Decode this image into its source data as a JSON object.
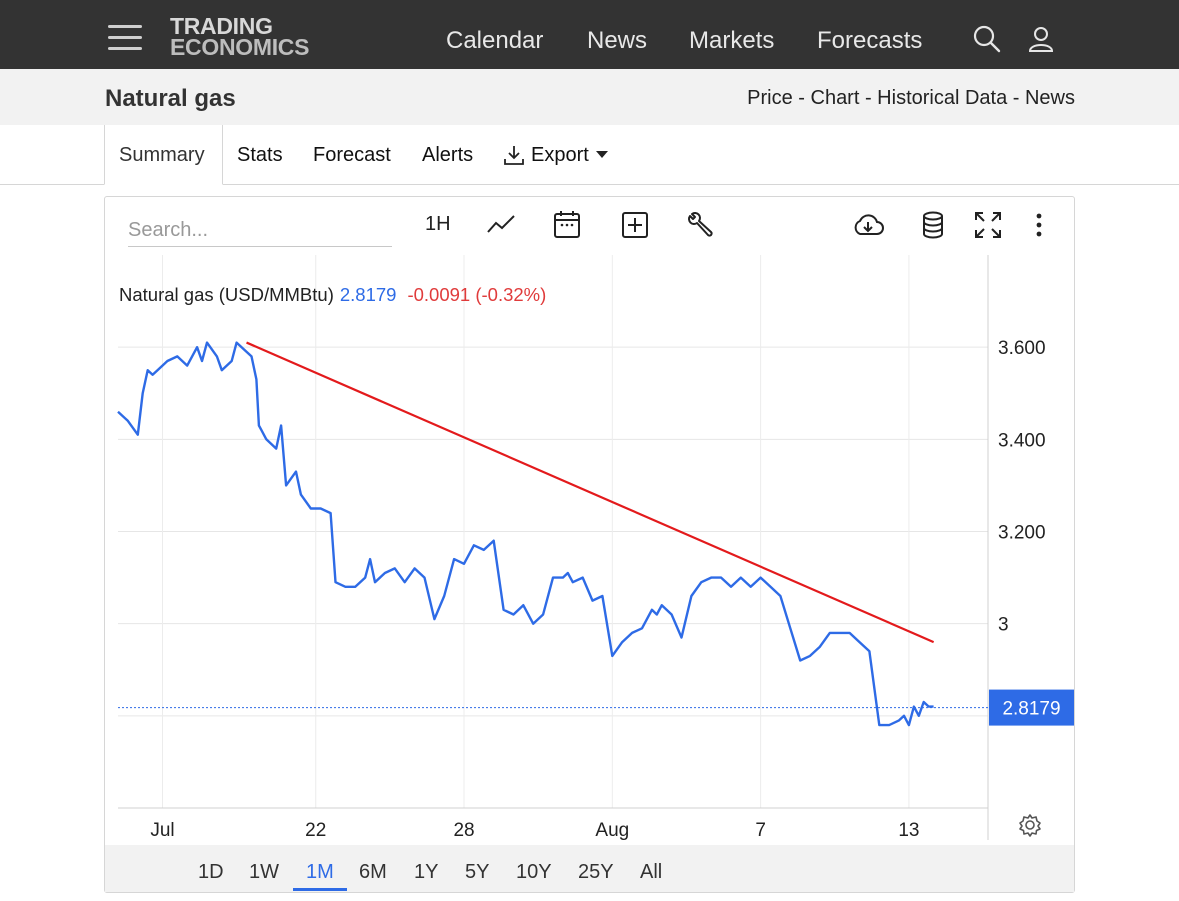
{
  "nav": {
    "logo_line1": "TRADING",
    "logo_line2": "ECONOMICS",
    "links": [
      "Calendar",
      "News",
      "Markets",
      "Forecasts"
    ]
  },
  "header": {
    "title": "Natural gas",
    "subnav": "Price - Chart - Historical Data - News"
  },
  "tabs": [
    "Summary",
    "Stats",
    "Forecast",
    "Alerts",
    "Export"
  ],
  "toolbar": {
    "search_placeholder": "Search...",
    "interval": "1H"
  },
  "legend": {
    "name": "Natural gas (USD/MMBtu)",
    "last": "2.8179",
    "change": "-0.0091 (-0.32%)"
  },
  "ranges": [
    "1D",
    "1W",
    "1M",
    "6M",
    "1Y",
    "5Y",
    "10Y",
    "25Y",
    "All"
  ],
  "active_range": "1M",
  "colors": {
    "series": "#2e6be6",
    "trendline": "#e31a1c",
    "negative": "#e03b3b",
    "topbar": "#333333"
  },
  "chart_data": {
    "type": "line",
    "title": "Natural gas (USD/MMBtu)",
    "xlabel": "",
    "ylabel": "",
    "x_ticks": [
      {
        "label": "Jul",
        "x": 0.9
      },
      {
        "label": "22",
        "x": 4.0
      },
      {
        "label": "28",
        "x": 7.0
      },
      {
        "label": "Aug",
        "x": 10.0
      },
      {
        "label": "7",
        "x": 13.0
      },
      {
        "label": "13",
        "x": 16.0
      }
    ],
    "y_ticks": [
      {
        "label": "3.600",
        "value": 3.6
      },
      {
        "label": "3.400",
        "value": 3.4
      },
      {
        "label": "3.200",
        "value": 3.2
      },
      {
        "label": "3",
        "value": 3.0
      }
    ],
    "xlim": [
      0,
      17.6
    ],
    "ylim": [
      2.6,
      3.8
    ],
    "grid": true,
    "last_price_label": "2.8179",
    "last_price": 2.8179,
    "series": [
      {
        "name": "Natural gas (USD/MMBtu)",
        "x": [
          0,
          0.2,
          0.4,
          0.5,
          0.6,
          0.7,
          0.8,
          1.0,
          1.2,
          1.4,
          1.6,
          1.7,
          1.8,
          2.0,
          2.1,
          2.3,
          2.4,
          2.5,
          2.7,
          2.8,
          2.85,
          2.9,
          3.0,
          3.2,
          3.3,
          3.4,
          3.6,
          3.7,
          3.9,
          4.1,
          4.3,
          4.4,
          4.6,
          4.8,
          5.0,
          5.1,
          5.2,
          5.4,
          5.6,
          5.8,
          6.0,
          6.2,
          6.4,
          6.6,
          6.8,
          7.0,
          7.2,
          7.4,
          7.6,
          7.8,
          8.0,
          8.2,
          8.4,
          8.6,
          8.8,
          9.0,
          9.1,
          9.2,
          9.4,
          9.6,
          9.8,
          10.0,
          10.2,
          10.4,
          10.6,
          10.8,
          10.9,
          11.0,
          11.2,
          11.4,
          11.6,
          11.8,
          12.0,
          12.2,
          12.4,
          12.6,
          12.8,
          13.0,
          13.2,
          13.4,
          13.6,
          13.8,
          14.0,
          14.2,
          14.4,
          14.6,
          14.8,
          15.0,
          15.2,
          15.4,
          15.6,
          15.8,
          15.9,
          16.0,
          16.1,
          16.2,
          16.3,
          16.4,
          16.5
        ],
        "y": [
          3.46,
          3.44,
          3.41,
          3.5,
          3.55,
          3.54,
          3.55,
          3.57,
          3.58,
          3.56,
          3.6,
          3.57,
          3.61,
          3.58,
          3.55,
          3.57,
          3.61,
          3.6,
          3.58,
          3.53,
          3.43,
          3.42,
          3.4,
          3.38,
          3.43,
          3.3,
          3.33,
          3.28,
          3.25,
          3.25,
          3.24,
          3.09,
          3.08,
          3.08,
          3.1,
          3.14,
          3.09,
          3.11,
          3.12,
          3.09,
          3.12,
          3.1,
          3.01,
          3.06,
          3.14,
          3.13,
          3.17,
          3.16,
          3.18,
          3.03,
          3.02,
          3.04,
          3.0,
          3.02,
          3.1,
          3.1,
          3.11,
          3.09,
          3.1,
          3.05,
          3.06,
          2.93,
          2.96,
          2.98,
          2.99,
          3.03,
          3.02,
          3.04,
          3.02,
          2.97,
          3.06,
          3.09,
          3.1,
          3.1,
          3.08,
          3.1,
          3.08,
          3.1,
          3.08,
          3.06,
          2.99,
          2.92,
          2.93,
          2.95,
          2.98,
          2.98,
          2.98,
          2.96,
          2.94,
          2.78,
          2.78,
          2.79,
          2.8,
          2.78,
          2.82,
          2.8,
          2.83,
          2.82,
          2.82
        ]
      },
      {
        "name": "",
        "kind": "trendline",
        "x": [
          2.6,
          16.5
        ],
        "y": [
          3.61,
          2.96
        ]
      }
    ]
  }
}
